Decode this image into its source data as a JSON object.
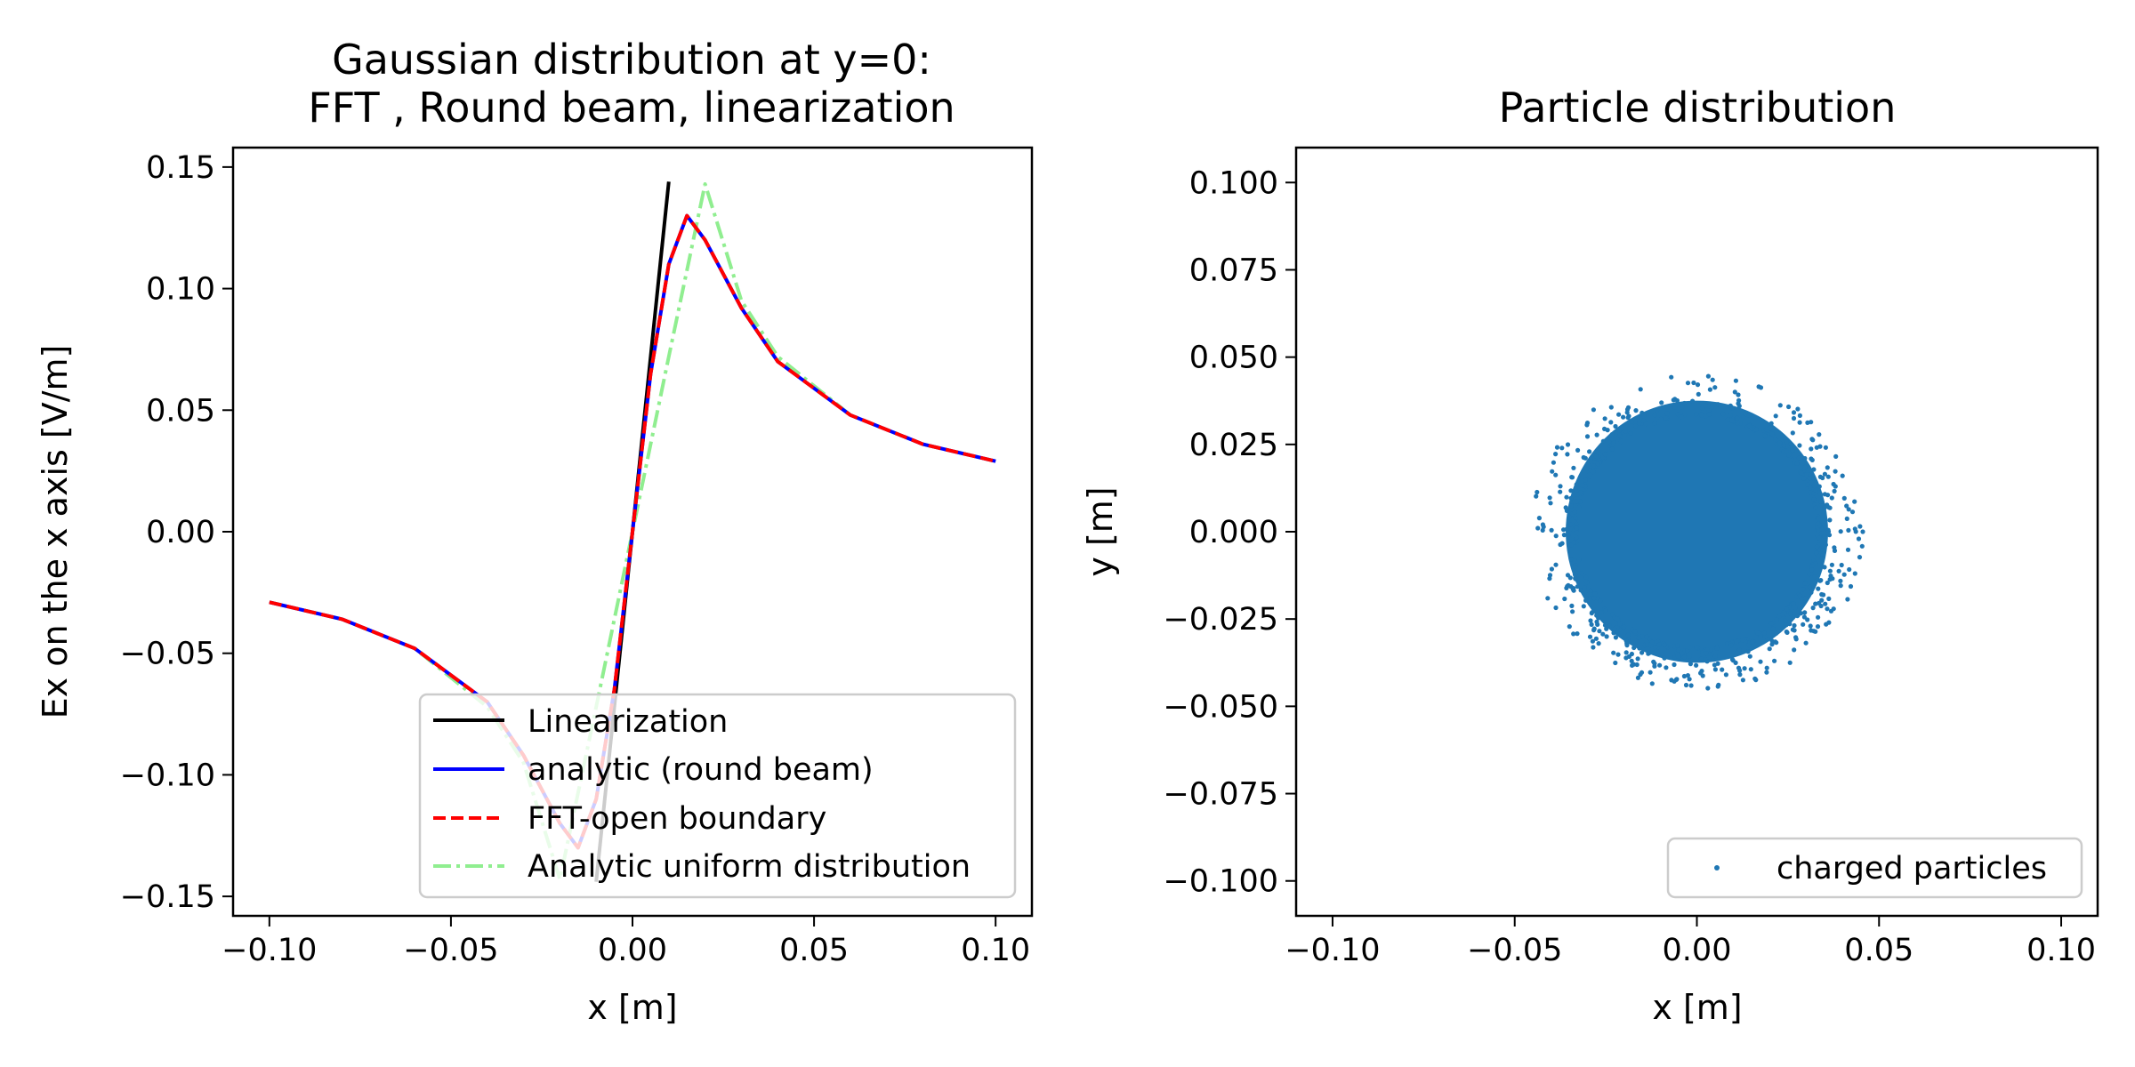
{
  "chart_data": [
    {
      "type": "line",
      "title_line1": "Gaussian distribution at y=0:",
      "title_line2": "FFT , Round beam, linearization",
      "xlabel": "x [m]",
      "ylabel": "Ex on the x axis [V/m]",
      "xlim": [
        -0.11,
        0.11
      ],
      "ylim": [
        -0.158,
        0.158
      ],
      "xticks": [
        -0.1,
        -0.05,
        0.0,
        0.05,
        0.1
      ],
      "xtick_labels": [
        "−0.10",
        "−0.05",
        "0.00",
        "0.05",
        "0.10"
      ],
      "yticks": [
        -0.15,
        -0.1,
        -0.05,
        0.0,
        0.05,
        0.1,
        0.15
      ],
      "ytick_labels": [
        "−0.15",
        "−0.10",
        "−0.05",
        "0.00",
        "0.05",
        "0.10",
        "0.15"
      ],
      "grid": false,
      "legend_position": "lower-right",
      "series": [
        {
          "name": "Linearization",
          "color": "#000000",
          "style": "solid",
          "x": [
            -0.01,
            0.01
          ],
          "y": [
            -0.144,
            0.144
          ]
        },
        {
          "name": "analytic (round beam)",
          "color": "#0000ff",
          "style": "solid",
          "x": [
            -0.1,
            -0.08,
            -0.06,
            -0.04,
            -0.03,
            -0.02,
            -0.015,
            -0.01,
            -0.005,
            0,
            0.005,
            0.01,
            0.015,
            0.02,
            0.03,
            0.04,
            0.06,
            0.08,
            0.1
          ],
          "y": [
            -0.029,
            -0.036,
            -0.048,
            -0.07,
            -0.092,
            -0.12,
            -0.13,
            -0.11,
            -0.065,
            0,
            0.065,
            0.11,
            0.13,
            0.12,
            0.092,
            0.07,
            0.048,
            0.036,
            0.029
          ]
        },
        {
          "name": "FFT-open boundary",
          "color": "#ff0000",
          "style": "dashed",
          "x": [
            -0.1,
            -0.08,
            -0.06,
            -0.04,
            -0.03,
            -0.02,
            -0.015,
            -0.01,
            -0.005,
            0,
            0.005,
            0.01,
            0.015,
            0.02,
            0.03,
            0.04,
            0.06,
            0.08,
            0.1
          ],
          "y": [
            -0.029,
            -0.036,
            -0.048,
            -0.07,
            -0.092,
            -0.12,
            -0.13,
            -0.11,
            -0.065,
            0,
            0.065,
            0.11,
            0.13,
            0.12,
            0.092,
            0.07,
            0.048,
            0.036,
            0.029
          ]
        },
        {
          "name": "Analytic uniform distribution",
          "color": "#90ee90",
          "style": "dashdot",
          "x": [
            -0.1,
            -0.08,
            -0.06,
            -0.04,
            -0.03,
            -0.02,
            -0.01,
            0,
            0.01,
            0.02,
            0.03,
            0.04,
            0.06,
            0.08,
            0.1
          ],
          "y": [
            -0.029,
            -0.036,
            -0.048,
            -0.072,
            -0.095,
            -0.143,
            -0.072,
            0,
            0.072,
            0.143,
            0.095,
            0.072,
            0.048,
            0.036,
            0.029
          ]
        }
      ]
    },
    {
      "type": "scatter",
      "title": "Particle distribution",
      "xlabel": "x [m]",
      "ylabel": "y [m]",
      "xlim": [
        -0.11,
        0.11
      ],
      "ylim": [
        -0.11,
        0.11
      ],
      "xticks": [
        -0.1,
        -0.05,
        0.0,
        0.05,
        0.1
      ],
      "xtick_labels": [
        "−0.10",
        "−0.05",
        "0.00",
        "0.05",
        "0.10"
      ],
      "yticks": [
        -0.1,
        -0.075,
        -0.05,
        -0.025,
        0.0,
        0.025,
        0.05,
        0.075,
        0.1
      ],
      "ytick_labels": [
        "−0.100",
        "−0.075",
        "−0.050",
        "−0.025",
        "0.000",
        "0.025",
        "0.050",
        "0.075",
        "0.100"
      ],
      "grid": false,
      "legend_position": "lower-right",
      "series": [
        {
          "name": "charged particles",
          "color": "#1f77b4",
          "center": [
            0,
            0
          ],
          "core_radius": 0.036,
          "max_radius": 0.05
        }
      ]
    }
  ]
}
